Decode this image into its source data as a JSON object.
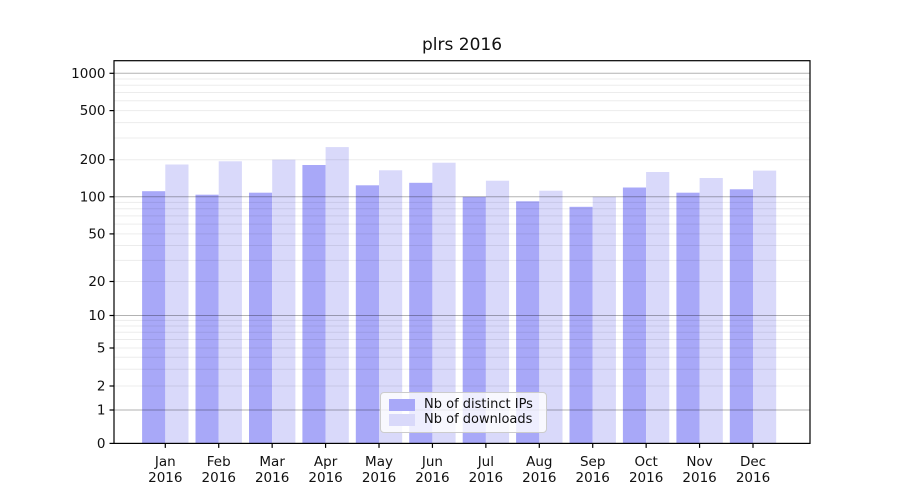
{
  "chart_data": {
    "type": "bar",
    "title": "plrs 2016",
    "categories": [
      "Jan 2016",
      "Feb 2016",
      "Mar 2016",
      "Apr 2016",
      "May 2016",
      "Jun 2016",
      "Jul 2016",
      "Aug 2016",
      "Sep 2016",
      "Oct 2016",
      "Nov 2016",
      "Dec 2016"
    ],
    "series": [
      {
        "name": "Nb of distinct IPs",
        "color": "#a8a8f8",
        "values": [
          111,
          104,
          108,
          181,
          124,
          130,
          100,
          92,
          83,
          119,
          108,
          115
        ]
      },
      {
        "name": "Nb of downloads",
        "color": "#d9d9fa",
        "values": [
          183,
          194,
          200,
          253,
          164,
          189,
          135,
          112,
          100,
          159,
          142,
          163
        ]
      }
    ],
    "xlabel": "",
    "ylabel": "",
    "y_axis": {
      "scale": "symlog",
      "tick_values": [
        1000,
        500,
        200,
        100,
        50,
        20,
        10,
        5,
        2,
        1,
        0
      ],
      "tick_labels": [
        "1000",
        "500",
        "200",
        "100",
        "50",
        "20",
        "10",
        "5",
        "2",
        "1",
        "0"
      ],
      "minor_values": [
        3,
        4,
        6,
        7,
        8,
        9,
        30,
        40,
        60,
        70,
        80,
        90,
        300,
        400,
        600,
        700,
        800,
        900
      ],
      "decade_values": [
        1,
        10,
        100,
        1000
      ],
      "ylim": [
        0,
        1280
      ]
    },
    "legend": {
      "position": "lower center",
      "entries": [
        "Nb of distinct IPs",
        "Nb of downloads"
      ]
    },
    "grid": "horizontal, both major and minor, drawn over bars"
  },
  "colors": {
    "background": "#ffffff",
    "spine": "#000000",
    "tick_text": "#111111",
    "minor_grid": "#00000013",
    "major_grid": "#0000004D",
    "legend_bg": "#ffffffcc",
    "legend_border": "#cccccc"
  }
}
